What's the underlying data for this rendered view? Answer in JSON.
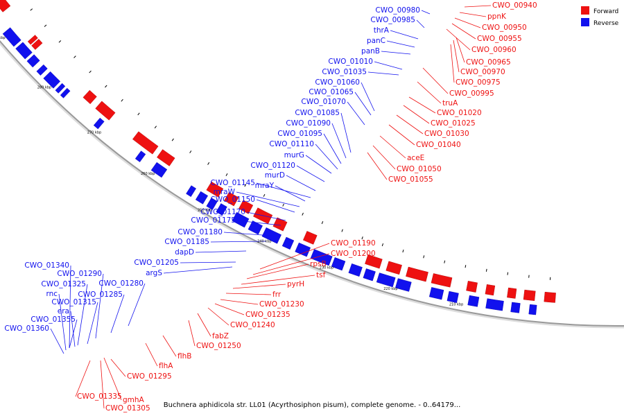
{
  "caption": "Buchnera aphidicola str. LL01 (Acyrthosiphon pisum), complete genome. - 0..64179...",
  "legend": [
    {
      "label": "Forward",
      "color": "#ee1111"
    },
    {
      "label": "Reverse",
      "color": "#1111ee"
    }
  ],
  "colors": {
    "forward": "#ee1111",
    "reverse": "#1111ee",
    "backbone": "#999999"
  },
  "ticks": [
    "210 kbp",
    "220 kbp",
    "230 kbp",
    "240 kbp",
    "250 kbp",
    "260 kbp",
    "270 kbp",
    "280 kbp",
    "290 kbp"
  ],
  "forward_genes": [
    "CWO_00940",
    "ppnK",
    "CWO_00950",
    "CWO_00955",
    "CWO_00960",
    "CWO_00965",
    "CWO_00970",
    "CWO_00975",
    "CWO_00995",
    "truA",
    "CWO_01020",
    "CWO_01025",
    "CWO_01030",
    "CWO_01040",
    "aceE",
    "CWO_01050",
    "CWO_01055",
    "CWO_01190",
    "CWO_01200",
    "rpsB",
    "tsf",
    "pyrH",
    "frr",
    "CWO_01230",
    "CWO_01235",
    "CWO_01240",
    "fabZ",
    "CWO_01250",
    "flhB",
    "flhA",
    "CWO_01295",
    "gmhA",
    "CWO_01305",
    "CWO_01335"
  ],
  "reverse_genes": [
    "CWO_00980",
    "CWO_00985",
    "thrA",
    "panC",
    "panB",
    "CWO_01010",
    "CWO_01035",
    "CWO_01060",
    "CWO_01065",
    "CWO_01070",
    "CWO_01085",
    "CWO_01090",
    "CWO_01095",
    "CWO_01110",
    "murG",
    "CWO_01120",
    "murD",
    "CWO_01145",
    "mraY",
    "mraW",
    "CWO_01150",
    "CWO_01170",
    "CWO_01175",
    "CWO_01180",
    "CWO_01185",
    "dapD",
    "CWO_01205",
    "argS",
    "CWO_01280",
    "CWO_01285",
    "CWO_01290",
    "CWO_01340",
    "CWO_01325",
    "rnc",
    "CWO_01315",
    "era",
    "CWO_01355",
    "CWO_01360"
  ]
}
